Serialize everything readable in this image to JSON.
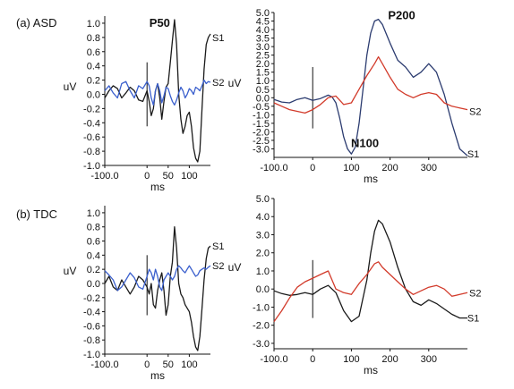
{
  "panel_labels": [
    "(a) ASD",
    "(b) TDC"
  ],
  "colors": {
    "S1": "#1a1a1a",
    "S1_long": "#2c3c70",
    "S2": "#3a5fcd",
    "S2_long": "#d23a2a",
    "axis": "#111111",
    "stim": "#111111"
  },
  "chart_data": [
    {
      "id": "asd-short",
      "type": "line",
      "panel": "(a) ASD",
      "xlabel": "ms",
      "ylabel": "uV",
      "xlim": [
        -100,
        150
      ],
      "ylim": [
        -1.0,
        1.1
      ],
      "xticks": [
        -100,
        0,
        50,
        100
      ],
      "xtick_labels": [
        "-100.0",
        "0",
        "50",
        "100"
      ],
      "yticks": [
        -1.0,
        -0.8,
        -0.6,
        -0.4,
        -0.2,
        0.0,
        0.2,
        0.4,
        0.6,
        0.8,
        1.0
      ],
      "ytick_labels": [
        "-1.0",
        "-0.8",
        "-0.6",
        "-0.4",
        "-0.2",
        "0.0",
        "0.2",
        "0.4",
        "0.6",
        "0.8",
        "1.0"
      ],
      "stimulus_marker": {
        "x": 0,
        "y_from": -0.45,
        "y_to": 0.45
      },
      "peak_labels": [
        {
          "text": "P50",
          "x": 30,
          "y": 0.95
        }
      ],
      "series": [
        {
          "name": "S1",
          "color": "#1a1a1a",
          "label_x": 150,
          "label_y": 0.8,
          "x": [
            -100,
            -90,
            -80,
            -70,
            -60,
            -50,
            -40,
            -30,
            -20,
            -10,
            0,
            5,
            10,
            15,
            20,
            25,
            30,
            35,
            40,
            45,
            50,
            55,
            60,
            65,
            70,
            75,
            80,
            85,
            90,
            95,
            100,
            105,
            110,
            115,
            120,
            125,
            130,
            135,
            140,
            145,
            150
          ],
          "y": [
            -0.05,
            0.05,
            0.12,
            0.08,
            -0.05,
            0.02,
            0.1,
            0.05,
            -0.08,
            -0.1,
            0.05,
            -0.1,
            -0.3,
            -0.2,
            0.05,
            0.15,
            -0.05,
            -0.35,
            -0.1,
            0.1,
            0.15,
            0.45,
            0.75,
            1.05,
            0.7,
            0.0,
            -0.35,
            -0.55,
            -0.45,
            -0.3,
            -0.25,
            -0.45,
            -0.75,
            -0.9,
            -0.95,
            -0.8,
            -0.2,
            0.35,
            0.7,
            0.8,
            0.85
          ]
        },
        {
          "name": "S2",
          "color": "#3a5fcd",
          "label_x": 150,
          "label_y": 0.17,
          "x": [
            -100,
            -90,
            -80,
            -70,
            -60,
            -50,
            -40,
            -30,
            -20,
            -10,
            0,
            5,
            10,
            15,
            20,
            25,
            30,
            35,
            40,
            45,
            50,
            55,
            60,
            65,
            70,
            75,
            80,
            85,
            90,
            95,
            100,
            105,
            110,
            115,
            120,
            125,
            130,
            135,
            140,
            145,
            150
          ],
          "y": [
            0.05,
            0.12,
            0.02,
            -0.05,
            0.15,
            0.18,
            0.05,
            -0.05,
            0.12,
            0.08,
            0.18,
            0.12,
            -0.05,
            -0.15,
            0.05,
            0.15,
            0.05,
            -0.12,
            -0.02,
            0.1,
            0.08,
            -0.02,
            -0.1,
            -0.15,
            -0.08,
            0.02,
            0.1,
            0.05,
            -0.05,
            0.0,
            0.08,
            0.05,
            0.0,
            0.1,
            0.08,
            0.05,
            0.12,
            0.2,
            0.15,
            0.18,
            0.17
          ]
        }
      ]
    },
    {
      "id": "asd-long",
      "type": "line",
      "panel": "(a) ASD",
      "xlabel": "ms",
      "ylabel": "uV",
      "xlim": [
        -100,
        400
      ],
      "ylim": [
        -3.5,
        5.0
      ],
      "xticks": [
        -100,
        0,
        100,
        200,
        300
      ],
      "xtick_labels": [
        "-100.0",
        "0",
        "100",
        "200",
        "300"
      ],
      "yticks": [
        -3.0,
        -2.5,
        -2.0,
        -1.5,
        -1.0,
        -0.5,
        0.0,
        0.5,
        1.0,
        1.5,
        2.0,
        2.5,
        3.0,
        3.5,
        4.0,
        4.5,
        5.0
      ],
      "ytick_labels": [
        "-3.0",
        "-2.5",
        "-2.0",
        "-1.5",
        "-1.0",
        "-0.5",
        "0.0",
        "0.5",
        "1.0",
        "1.5",
        "2.0",
        "2.5",
        "3.0",
        "3.5",
        "4.0",
        "4.5",
        "5.0"
      ],
      "stimulus_marker": {
        "x": 0,
        "y_from": -1.8,
        "y_to": 1.8
      },
      "peak_labels": [
        {
          "text": "P200",
          "x": 230,
          "y": 4.6
        },
        {
          "text": "N100",
          "x": 135,
          "y": -2.9
        }
      ],
      "series": [
        {
          "name": "S1",
          "color": "#2c3c70",
          "label_x": 395,
          "label_y": -3.3,
          "x": [
            -100,
            -80,
            -60,
            -40,
            -20,
            0,
            20,
            40,
            50,
            60,
            70,
            80,
            90,
            100,
            110,
            120,
            130,
            140,
            150,
            160,
            170,
            180,
            200,
            220,
            240,
            260,
            280,
            300,
            320,
            340,
            360,
            380,
            400
          ],
          "y": [
            -0.1,
            -0.25,
            -0.3,
            -0.1,
            0.0,
            -0.15,
            -0.05,
            0.15,
            0.05,
            -0.3,
            -1.2,
            -2.3,
            -3.0,
            -3.3,
            -2.9,
            -1.5,
            0.5,
            2.5,
            3.8,
            4.5,
            4.6,
            4.3,
            3.2,
            2.2,
            1.8,
            1.2,
            1.5,
            2.0,
            1.5,
            0.2,
            -1.5,
            -3.0,
            -3.4
          ]
        },
        {
          "name": "S2",
          "color": "#d23a2a",
          "label_x": 400,
          "label_y": -0.8,
          "x": [
            -100,
            -80,
            -60,
            -40,
            -20,
            0,
            20,
            40,
            60,
            80,
            100,
            120,
            140,
            160,
            170,
            180,
            200,
            220,
            240,
            260,
            280,
            300,
            320,
            340,
            360,
            380,
            400
          ],
          "y": [
            -0.3,
            -0.5,
            -0.7,
            -0.8,
            -0.9,
            -0.7,
            -0.4,
            0.0,
            0.1,
            -0.4,
            -0.3,
            0.5,
            1.3,
            2.0,
            2.4,
            2.0,
            1.2,
            0.5,
            0.2,
            0.0,
            0.2,
            0.3,
            0.2,
            -0.3,
            -0.5,
            -0.6,
            -0.7
          ]
        }
      ]
    },
    {
      "id": "tdc-short",
      "type": "line",
      "panel": "(b) TDC",
      "xlabel": "ms",
      "ylabel": "uV",
      "xlim": [
        -100,
        150
      ],
      "ylim": [
        -1.0,
        1.1
      ],
      "xticks": [
        -100,
        0,
        50,
        100
      ],
      "xtick_labels": [
        "-100.0",
        "0",
        "50",
        "100"
      ],
      "yticks": [
        -1.0,
        -0.8,
        -0.6,
        -0.4,
        -0.2,
        0.0,
        0.2,
        0.4,
        0.6,
        0.8,
        1.0
      ],
      "ytick_labels": [
        "-1.0",
        "-0.8",
        "-0.6",
        "-0.4",
        "-0.2",
        "0.0",
        "0.2",
        "0.4",
        "0.6",
        "0.8",
        "1.0"
      ],
      "stimulus_marker": {
        "x": 0,
        "y_from": -0.45,
        "y_to": 0.4
      },
      "peak_labels": [],
      "series": [
        {
          "name": "S1",
          "color": "#1a1a1a",
          "label_x": 150,
          "label_y": 0.53,
          "x": [
            -100,
            -90,
            -80,
            -70,
            -60,
            -50,
            -40,
            -30,
            -20,
            -10,
            0,
            5,
            10,
            15,
            20,
            25,
            30,
            35,
            40,
            45,
            50,
            55,
            60,
            65,
            70,
            75,
            80,
            85,
            90,
            95,
            100,
            105,
            110,
            115,
            120,
            125,
            130,
            135,
            140,
            145,
            150
          ],
          "y": [
            0.0,
            0.1,
            -0.05,
            -0.1,
            0.05,
            -0.05,
            -0.15,
            -0.05,
            0.1,
            0.05,
            -0.05,
            -0.15,
            0.0,
            -0.3,
            -0.35,
            -0.1,
            0.05,
            0.15,
            -0.1,
            -0.45,
            -0.3,
            0.1,
            0.3,
            0.8,
            0.5,
            0.0,
            -0.15,
            -0.2,
            -0.3,
            -0.35,
            -0.4,
            -0.55,
            -0.75,
            -0.9,
            -0.95,
            -0.75,
            -0.35,
            0.05,
            0.35,
            0.5,
            0.53
          ]
        },
        {
          "name": "S2",
          "color": "#3a5fcd",
          "label_x": 150,
          "label_y": 0.25,
          "x": [
            -100,
            -90,
            -80,
            -70,
            -60,
            -50,
            -40,
            -30,
            -20,
            -10,
            0,
            5,
            10,
            15,
            20,
            25,
            30,
            35,
            40,
            45,
            50,
            55,
            60,
            65,
            70,
            75,
            80,
            85,
            90,
            95,
            100,
            105,
            110,
            115,
            120,
            125,
            130,
            135,
            140,
            145,
            150
          ],
          "y": [
            0.18,
            0.12,
            0.05,
            -0.1,
            -0.05,
            0.05,
            0.15,
            0.08,
            -0.05,
            -0.08,
            0.1,
            0.2,
            0.15,
            0.05,
            0.2,
            0.1,
            -0.05,
            -0.1,
            0.05,
            0.1,
            0.15,
            0.1,
            0.05,
            0.1,
            0.2,
            0.25,
            0.22,
            0.18,
            0.15,
            0.2,
            0.25,
            0.2,
            0.15,
            0.1,
            0.12,
            0.18,
            0.2,
            0.22,
            0.2,
            0.23,
            0.25
          ]
        }
      ]
    },
    {
      "id": "tdc-long",
      "type": "line",
      "panel": "(b) TDC",
      "xlabel": "ms",
      "ylabel": "uV",
      "xlim": [
        -100,
        400
      ],
      "ylim": [
        -3.3,
        5.0
      ],
      "xticks": [
        -100,
        0,
        100,
        200,
        300
      ],
      "xtick_labels": [
        "-100.0",
        "0",
        "100",
        "200",
        "300"
      ],
      "yticks": [
        -3.0,
        -2.0,
        -1.0,
        0.0,
        1.0,
        2.0,
        3.0,
        4.0,
        5.0
      ],
      "ytick_labels": [
        "-3.0",
        "-2.0",
        "-1.0",
        "0.0",
        "1.0",
        "2.0",
        "3.0",
        "4.0",
        "5.0"
      ],
      "stimulus_marker": {
        "x": 0,
        "y_from": -1.6,
        "y_to": 1.6
      },
      "peak_labels": [],
      "series": [
        {
          "name": "S1",
          "color": "#1a1a1a",
          "label_x": 395,
          "label_y": -1.6,
          "x": [
            -100,
            -80,
            -60,
            -40,
            -20,
            0,
            20,
            40,
            60,
            80,
            100,
            120,
            140,
            150,
            160,
            170,
            180,
            200,
            220,
            240,
            260,
            280,
            300,
            320,
            340,
            360,
            380,
            400
          ],
          "y": [
            -0.1,
            -0.25,
            -0.35,
            -0.3,
            -0.2,
            -0.3,
            0.0,
            0.2,
            -0.2,
            -1.2,
            -1.8,
            -1.5,
            0.5,
            2.0,
            3.2,
            3.8,
            3.6,
            2.6,
            1.2,
            0.0,
            -0.7,
            -0.9,
            -0.6,
            -0.8,
            -1.1,
            -1.4,
            -1.6,
            -1.6
          ]
        },
        {
          "name": "S2",
          "color": "#d23a2a",
          "label_x": 400,
          "label_y": -0.2,
          "x": [
            -100,
            -80,
            -60,
            -40,
            -20,
            0,
            20,
            40,
            60,
            80,
            100,
            120,
            140,
            160,
            170,
            180,
            200,
            220,
            240,
            260,
            280,
            300,
            320,
            340,
            360,
            380,
            400
          ],
          "y": [
            -1.8,
            -1.2,
            -0.5,
            0.1,
            0.4,
            0.6,
            0.8,
            1.0,
            0.0,
            -0.2,
            -0.3,
            0.3,
            0.8,
            1.4,
            1.5,
            1.2,
            0.8,
            0.4,
            0.0,
            -0.3,
            -0.1,
            0.1,
            0.2,
            0.0,
            -0.4,
            -0.3,
            -0.2
          ]
        }
      ]
    }
  ]
}
